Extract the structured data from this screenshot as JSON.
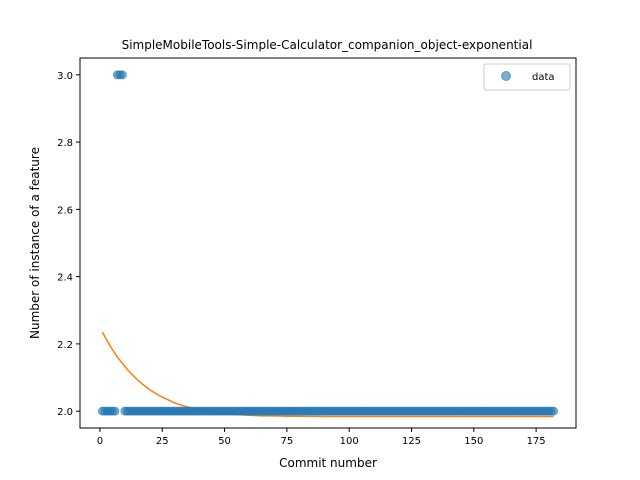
{
  "chart_data": {
    "type": "scatter",
    "title": "SimpleMobileTools-Simple-Calculator_companion_object-exponential",
    "xlabel": "Commit number",
    "ylabel": "Number of instance of a feature",
    "xlim": [
      -8,
      191
    ],
    "ylim": [
      1.95,
      3.05
    ],
    "xticks": [
      0,
      25,
      50,
      75,
      100,
      125,
      150,
      175
    ],
    "yticks": [
      2.0,
      2.2,
      2.4,
      2.6,
      2.8,
      3.0
    ],
    "ytick_labels": [
      "2.0",
      "2.2",
      "2.4",
      "2.6",
      "2.8",
      "3.0"
    ],
    "legend": {
      "position": "top-right",
      "entries": [
        "data"
      ]
    },
    "grid": false,
    "colors": {
      "data": "#1f77b4",
      "fit": "#ff7f0e"
    },
    "series": [
      {
        "name": "data",
        "type": "scatter",
        "points": [
          [
            1,
            2
          ],
          [
            2,
            2
          ],
          [
            3,
            2
          ],
          [
            4,
            2
          ],
          [
            5,
            2
          ],
          [
            6,
            2
          ],
          [
            7,
            3
          ],
          [
            8,
            3
          ],
          [
            9,
            3
          ],
          [
            10,
            2
          ],
          [
            11,
            2
          ],
          [
            12,
            2
          ],
          [
            13,
            2
          ],
          [
            14,
            2
          ],
          [
            15,
            2
          ],
          [
            16,
            2
          ],
          [
            17,
            2
          ],
          [
            18,
            2
          ],
          [
            19,
            2
          ],
          [
            20,
            2
          ],
          [
            21,
            2
          ],
          [
            22,
            2
          ],
          [
            23,
            2
          ],
          [
            24,
            2
          ],
          [
            25,
            2
          ],
          [
            26,
            2
          ],
          [
            27,
            2
          ],
          [
            28,
            2
          ],
          [
            29,
            2
          ],
          [
            30,
            2
          ],
          [
            31,
            2
          ],
          [
            32,
            2
          ],
          [
            33,
            2
          ],
          [
            34,
            2
          ],
          [
            35,
            2
          ],
          [
            36,
            2
          ],
          [
            37,
            2
          ],
          [
            38,
            2
          ],
          [
            39,
            2
          ],
          [
            40,
            2
          ],
          [
            41,
            2
          ],
          [
            42,
            2
          ],
          [
            43,
            2
          ],
          [
            44,
            2
          ],
          [
            45,
            2
          ],
          [
            46,
            2
          ],
          [
            47,
            2
          ],
          [
            48,
            2
          ],
          [
            49,
            2
          ],
          [
            50,
            2
          ],
          [
            51,
            2
          ],
          [
            52,
            2
          ],
          [
            53,
            2
          ],
          [
            54,
            2
          ],
          [
            55,
            2
          ],
          [
            56,
            2
          ],
          [
            57,
            2
          ],
          [
            58,
            2
          ],
          [
            59,
            2
          ],
          [
            60,
            2
          ],
          [
            61,
            2
          ],
          [
            62,
            2
          ],
          [
            63,
            2
          ],
          [
            64,
            2
          ],
          [
            65,
            2
          ],
          [
            66,
            2
          ],
          [
            67,
            2
          ],
          [
            68,
            2
          ],
          [
            69,
            2
          ],
          [
            70,
            2
          ],
          [
            71,
            2
          ],
          [
            72,
            2
          ],
          [
            73,
            2
          ],
          [
            74,
            2
          ],
          [
            75,
            2
          ],
          [
            76,
            2
          ],
          [
            77,
            2
          ],
          [
            78,
            2
          ],
          [
            79,
            2
          ],
          [
            80,
            2
          ],
          [
            81,
            2
          ],
          [
            82,
            2
          ],
          [
            83,
            2
          ],
          [
            84,
            2
          ],
          [
            85,
            2
          ],
          [
            86,
            2
          ],
          [
            87,
            2
          ],
          [
            88,
            2
          ],
          [
            89,
            2
          ],
          [
            90,
            2
          ],
          [
            91,
            2
          ],
          [
            92,
            2
          ],
          [
            93,
            2
          ],
          [
            94,
            2
          ],
          [
            95,
            2
          ],
          [
            96,
            2
          ],
          [
            97,
            2
          ],
          [
            98,
            2
          ],
          [
            99,
            2
          ],
          [
            100,
            2
          ],
          [
            101,
            2
          ],
          [
            102,
            2
          ],
          [
            103,
            2
          ],
          [
            104,
            2
          ],
          [
            105,
            2
          ],
          [
            106,
            2
          ],
          [
            107,
            2
          ],
          [
            108,
            2
          ],
          [
            109,
            2
          ],
          [
            110,
            2
          ],
          [
            111,
            2
          ],
          [
            112,
            2
          ],
          [
            113,
            2
          ],
          [
            114,
            2
          ],
          [
            115,
            2
          ],
          [
            116,
            2
          ],
          [
            117,
            2
          ],
          [
            118,
            2
          ],
          [
            119,
            2
          ],
          [
            120,
            2
          ],
          [
            121,
            2
          ],
          [
            122,
            2
          ],
          [
            123,
            2
          ],
          [
            124,
            2
          ],
          [
            125,
            2
          ],
          [
            126,
            2
          ],
          [
            127,
            2
          ],
          [
            128,
            2
          ],
          [
            129,
            2
          ],
          [
            130,
            2
          ],
          [
            131,
            2
          ],
          [
            132,
            2
          ],
          [
            133,
            2
          ],
          [
            134,
            2
          ],
          [
            135,
            2
          ],
          [
            136,
            2
          ],
          [
            137,
            2
          ],
          [
            138,
            2
          ],
          [
            139,
            2
          ],
          [
            140,
            2
          ],
          [
            141,
            2
          ],
          [
            142,
            2
          ],
          [
            143,
            2
          ],
          [
            144,
            2
          ],
          [
            145,
            2
          ],
          [
            146,
            2
          ],
          [
            147,
            2
          ],
          [
            148,
            2
          ],
          [
            149,
            2
          ],
          [
            150,
            2
          ],
          [
            151,
            2
          ],
          [
            152,
            2
          ],
          [
            153,
            2
          ],
          [
            154,
            2
          ],
          [
            155,
            2
          ],
          [
            156,
            2
          ],
          [
            157,
            2
          ],
          [
            158,
            2
          ],
          [
            159,
            2
          ],
          [
            160,
            2
          ],
          [
            161,
            2
          ],
          [
            162,
            2
          ],
          [
            163,
            2
          ],
          [
            164,
            2
          ],
          [
            165,
            2
          ],
          [
            166,
            2
          ],
          [
            167,
            2
          ],
          [
            168,
            2
          ],
          [
            169,
            2
          ],
          [
            170,
            2
          ],
          [
            171,
            2
          ],
          [
            172,
            2
          ],
          [
            173,
            2
          ],
          [
            174,
            2
          ],
          [
            175,
            2
          ],
          [
            176,
            2
          ],
          [
            177,
            2
          ],
          [
            178,
            2
          ],
          [
            179,
            2
          ],
          [
            180,
            2
          ],
          [
            181,
            2
          ],
          [
            182,
            2
          ]
        ]
      },
      {
        "name": "",
        "type": "line",
        "points": [
          [
            1,
            2.235
          ],
          [
            3,
            2.208
          ],
          [
            5,
            2.183
          ],
          [
            7,
            2.161
          ],
          [
            9,
            2.142
          ],
          [
            11,
            2.124
          ],
          [
            13,
            2.108
          ],
          [
            15,
            2.094
          ],
          [
            17,
            2.081
          ],
          [
            19,
            2.069
          ],
          [
            21,
            2.059
          ],
          [
            23,
            2.05
          ],
          [
            25,
            2.042
          ],
          [
            27,
            2.035
          ],
          [
            29,
            2.028
          ],
          [
            31,
            2.022
          ],
          [
            33,
            2.017
          ],
          [
            35,
            2.013
          ],
          [
            37,
            2.009
          ],
          [
            39,
            2.005
          ],
          [
            41,
            2.002
          ],
          [
            45,
            1.997
          ],
          [
            50,
            1.993
          ],
          [
            55,
            1.99
          ],
          [
            60,
            1.988
          ],
          [
            65,
            1.986
          ],
          [
            70,
            1.986
          ],
          [
            75,
            1.985
          ],
          [
            80,
            1.985
          ],
          [
            90,
            1.984
          ],
          [
            100,
            1.984
          ],
          [
            120,
            1.984
          ],
          [
            140,
            1.984
          ],
          [
            160,
            1.984
          ],
          [
            182,
            1.984
          ]
        ]
      }
    ]
  }
}
